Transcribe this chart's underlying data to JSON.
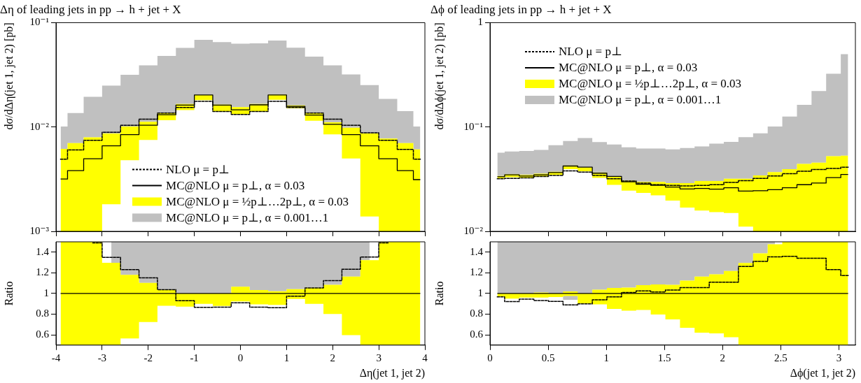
{
  "chart_data": [
    {
      "type": "step",
      "title": "Δη of leading jets in pp → h + jet + X",
      "ylabel": "dσ/dΔη(jet 1, jet 2) [pb]",
      "log": true,
      "legend": "bottom",
      "tick_labels": "y",
      "x": [
        -3.9,
        -3.6,
        -3.2,
        -2.8,
        -2.4,
        -2,
        -1.6,
        -1.2,
        -0.8,
        -0.4,
        0,
        0.4,
        0.8,
        1.2,
        1.6,
        2,
        2.4,
        2.8,
        3.2,
        3.6,
        3.9
      ],
      "xlim": [
        -4,
        4
      ],
      "xticks": [
        -4,
        -3,
        -2,
        -1,
        0,
        1,
        2,
        3,
        4
      ],
      "ylim": [
        0.001,
        0.1
      ],
      "yticks": [
        {
          "value": 0.001,
          "label": "10⁻³"
        },
        {
          "value": 0.01,
          "label": "10⁻²"
        },
        {
          "value": 0.1,
          "label": "10⁻¹"
        }
      ],
      "series": [
        {
          "name": "NLO μ = p⊥",
          "type": "step",
          "line_style": "dashed",
          "color": "#000000",
          "values": [
            0.00492,
            0.00603,
            0.00746,
            0.0089,
            0.0104,
            0.0119,
            0.0136,
            0.0154,
            0.0176,
            0.0141,
            0.0132,
            0.0141,
            0.0176,
            0.0154,
            0.0136,
            0.0119,
            0.0104,
            0.00881,
            0.00746,
            0.00609,
            0.00492
          ]
        },
        {
          "name": "MC@NLO μ = p⊥, α = 0.03",
          "type": "step",
          "line_style": "solid",
          "color": "#000000",
          "values": [
            0.00317,
            0.00382,
            0.00497,
            0.00661,
            0.00846,
            0.0104,
            0.0131,
            0.0162,
            0.0203,
            0.0162,
            0.0146,
            0.0163,
            0.0203,
            0.0158,
            0.013,
            0.0106,
            0.00846,
            0.00661,
            0.00497,
            0.00382,
            0.00313
          ]
        },
        {
          "name": "MC@NLO μ = ½p⊥…2p⊥, α = 0.03",
          "type": "step",
          "color": "#ffff00",
          "values": [
            null,
            null,
            null,
            null,
            null,
            null,
            null,
            null,
            null,
            null,
            null,
            null,
            null,
            null,
            null,
            null,
            null,
            null,
            null,
            null,
            null
          ],
          "lower": [
            0.001,
            0.001,
            0.001,
            0.00182,
            0.0048,
            0.0075,
            0.0116,
            0.0145,
            0.0181,
            0.0141,
            0.0132,
            0.0141,
            0.0182,
            0.0151,
            0.0115,
            0.00851,
            0.005,
            0.00139,
            0.001,
            0.001,
            0.001
          ],
          "upper": [
            0.00618,
            0.00702,
            0.00796,
            0.00868,
            0.0101,
            0.0112,
            0.0137,
            0.0166,
            0.0203,
            0.0164,
            0.0155,
            0.0166,
            0.0205,
            0.0161,
            0.0137,
            0.0111,
            0.00985,
            0.00868,
            0.00776,
            0.00702,
            0.00609
          ]
        },
        {
          "name": "MC@NLO μ = p⊥, α = 0.001…1",
          "type": "step",
          "color": "#c0c0c0",
          "values": [
            null,
            null,
            null,
            null,
            null,
            null,
            null,
            null,
            null,
            null,
            null,
            null,
            null,
            null,
            null,
            null,
            null,
            null,
            null,
            null,
            null
          ],
          "lower": [
            0.00618,
            0.00702,
            0.00796,
            0.00868,
            0.0101,
            0.0112,
            0.0137,
            0.0166,
            0.0203,
            0.0164,
            0.0155,
            0.0166,
            0.0205,
            0.0161,
            0.0137,
            0.0111,
            0.00985,
            0.00868,
            0.00776,
            0.00702,
            0.00609
          ],
          "upper": [
            0.0101,
            0.0136,
            0.0195,
            0.0249,
            0.0317,
            0.039,
            0.048,
            0.0573,
            0.0684,
            0.065,
            0.0628,
            0.0634,
            0.0674,
            0.0576,
            0.0473,
            0.039,
            0.0319,
            0.0252,
            0.0186,
            0.0142,
            0.0101
          ]
        }
      ]
    },
    {
      "type": "step",
      "title": "Δϕ of leading jets in pp → h + jet + X",
      "ylabel": "dσ/dΔϕ(jet 1, jet 2) [pb]",
      "log": true,
      "legend": "top left",
      "tick_labels": "y",
      "x": [
        0.063,
        0.189,
        0.314,
        0.44,
        0.565,
        0.691,
        0.817,
        0.942,
        1.068,
        1.194,
        1.319,
        1.445,
        1.571,
        1.696,
        1.822,
        1.948,
        2.073,
        2.199,
        2.325,
        2.45,
        2.576,
        2.702,
        2.827,
        2.953,
        3.079
      ],
      "xlim": [
        0,
        3.1416
      ],
      "xticks": [
        0,
        0.5,
        1,
        1.5,
        2,
        2.5,
        3
      ],
      "ylim": [
        0.01,
        1
      ],
      "yticks": [
        {
          "value": 0.01,
          "label": "10⁻²"
        },
        {
          "value": 0.1,
          "label": "10⁻¹"
        },
        1
      ],
      "series": [
        {
          "name": "NLO μ = p⊥",
          "type": "step",
          "line_style": "dashed",
          "color": "#000000",
          "values": [
            0.0319,
            0.0322,
            0.0325,
            0.0336,
            0.0343,
            0.038,
            0.037,
            0.0343,
            0.0319,
            0.0303,
            0.029,
            0.028,
            0.0276,
            0.0272,
            0.0276,
            0.028,
            0.0294,
            0.0306,
            0.0322,
            0.0339,
            0.0357,
            0.0376,
            0.0392,
            0.04,
            0.0412
          ]
        },
        {
          "name": "MC@NLO μ = p⊥, α = 0.03",
          "type": "step",
          "line_style": "solid",
          "color": "#000000",
          "values": [
            0.0334,
            0.0348,
            0.0339,
            0.0348,
            0.0366,
            0.0423,
            0.0412,
            0.0361,
            0.0336,
            0.0298,
            0.0283,
            0.0276,
            0.0266,
            0.0255,
            0.0258,
            0.0254,
            0.0262,
            0.0243,
            0.0245,
            0.0251,
            0.0262,
            0.028,
            0.029,
            0.0327,
            0.0351
          ]
        },
        {
          "name": "MC@NLO μ = ½p⊥…2p⊥, α = 0.03",
          "type": "step",
          "color": "#ffff00",
          "values": [
            null,
            null,
            null,
            null,
            null,
            null,
            null,
            null,
            null,
            null,
            null,
            null,
            null,
            null,
            null,
            null,
            null,
            null,
            null,
            null,
            null,
            null,
            null,
            null,
            null
          ],
          "lower": [
            0.0322,
            0.033,
            0.0325,
            0.0336,
            0.0348,
            0.0395,
            0.0376,
            0.0325,
            0.0279,
            0.0246,
            0.0234,
            0.0221,
            0.0197,
            0.0169,
            0.0158,
            0.0153,
            0.015,
            0.0111,
            0.01,
            0.01,
            0.01,
            0.01,
            0.01,
            0.01,
            0.01
          ],
          "upper": [
            0.0339,
            0.0353,
            0.0348,
            0.0357,
            0.0372,
            0.0428,
            0.0412,
            0.0366,
            0.0336,
            0.0306,
            0.0298,
            0.0298,
            0.029,
            0.029,
            0.0303,
            0.0303,
            0.0319,
            0.0319,
            0.0343,
            0.037,
            0.0395,
            0.0443,
            0.0455,
            0.0525,
            0.0531
          ]
        },
        {
          "name": "MC@NLO μ = p⊥, α = 0.001…1",
          "type": "step",
          "color": "#c0c0c0",
          "values": [
            null,
            null,
            null,
            null,
            null,
            null,
            null,
            null,
            null,
            null,
            null,
            null,
            null,
            null,
            null,
            null,
            null,
            null,
            null,
            null,
            null,
            null,
            null,
            null,
            null
          ],
          "lower": [
            0.0339,
            0.0353,
            0.0348,
            0.0357,
            0.0372,
            0.0428,
            0.0412,
            0.0366,
            0.0336,
            0.0306,
            0.0298,
            0.0298,
            0.029,
            0.029,
            0.0303,
            0.0303,
            0.0319,
            0.0319,
            0.0343,
            0.037,
            0.0395,
            0.0443,
            0.0455,
            0.0525,
            0.0531
          ],
          "upper": [
            0.0568,
            0.0582,
            0.0589,
            0.0604,
            0.067,
            0.0734,
            0.0785,
            0.0716,
            0.068,
            0.0639,
            0.0622,
            0.0622,
            0.061,
            0.0629,
            0.0652,
            0.0693,
            0.0719,
            0.0798,
            0.0871,
            0.101,
            0.126,
            0.163,
            0.221,
            0.324,
            0.499
          ]
        }
      ]
    },
    {
      "type": "step",
      "xlabel": "Δη(jet 1, jet 2)",
      "ylabel": "Ratio",
      "x": [
        -3.9,
        -3.6,
        -3.2,
        -2.8,
        -2.4,
        -2,
        -1.6,
        -1.2,
        -0.8,
        -0.4,
        0,
        0.4,
        0.8,
        1.2,
        1.6,
        2,
        2.4,
        2.8,
        3.2,
        3.6,
        3.9
      ],
      "xlim": [
        -4,
        4
      ],
      "xticks": [
        -4,
        -3,
        -2,
        -1,
        0,
        1,
        2,
        3,
        4
      ],
      "ylim": [
        0.5,
        1.5
      ],
      "yticks": [
        0.6,
        0.8,
        1,
        1.2,
        1.4
      ],
      "series": [
        {
          "type": "step",
          "line_style": "dashed",
          "color": "#000000",
          "values": [
            null,
            null,
            1.49,
            1.349,
            1.231,
            1.152,
            1.037,
            0.93,
            0.866,
            0.868,
            0.91,
            0.868,
            0.862,
            0.974,
            1.053,
            1.125,
            1.235,
            1.352,
            1.49,
            null,
            null
          ]
        },
        {
          "type": "step",
          "line_style": "solid",
          "color": "#000000",
          "values": [
            1,
            1,
            1,
            1,
            1,
            1,
            1,
            1,
            1,
            1,
            1,
            1,
            1,
            1,
            1,
            1,
            1,
            1,
            1,
            1,
            1
          ]
        },
        {
          "type": "step",
          "color": "#ffff00",
          "values": [
            null,
            null,
            null,
            null,
            null,
            null,
            null,
            null,
            null,
            null,
            null,
            null,
            null,
            null,
            null,
            null,
            null,
            null,
            null,
            null,
            null
          ],
          "lower": [
            0.5,
            0.5,
            0.5,
            0.5,
            0.565,
            0.723,
            0.881,
            0.872,
            0.9,
            0.88,
            0.923,
            0.895,
            0.89,
            0.947,
            0.899,
            0.802,
            0.596,
            0.5,
            0.5,
            0.5,
            0.5
          ],
          "upper": [
            1.5,
            1.5,
            1.5,
            1.297,
            1.18,
            1.103,
            1.037,
            1,
            1,
            1,
            1.066,
            1.033,
            1.022,
            1.042,
            1.055,
            1.084,
            1.163,
            1.323,
            1.5,
            1.5,
            1.5
          ]
        },
        {
          "type": "step",
          "color": "#c0c0c0",
          "values": [
            null,
            null,
            null,
            null,
            null,
            null,
            null,
            null,
            null,
            null,
            null,
            null,
            null,
            null,
            null,
            null,
            null,
            null,
            null,
            null,
            null
          ],
          "lower": [
            null,
            null,
            null,
            1.297,
            1.18,
            1.103,
            1.037,
            1,
            1,
            1,
            1.066,
            1.033,
            1.022,
            1.042,
            1.055,
            1.084,
            1.163,
            1.323,
            null,
            null,
            null
          ],
          "upper": [
            null,
            null,
            null,
            1.5,
            1.5,
            1.5,
            1.5,
            1.5,
            1.5,
            1.5,
            1.5,
            1.5,
            1.5,
            1.5,
            1.5,
            1.5,
            1.5,
            1.5,
            null,
            null,
            null
          ]
        }
      ]
    },
    {
      "type": "step",
      "xlabel": "Δϕ(jet 1, jet 2)",
      "ylabel": "Ratio",
      "x": [
        0.063,
        0.189,
        0.314,
        0.44,
        0.565,
        0.691,
        0.817,
        0.942,
        1.068,
        1.194,
        1.319,
        1.445,
        1.571,
        1.696,
        1.822,
        1.948,
        2.073,
        2.199,
        2.325,
        2.45,
        2.576,
        2.702,
        2.827,
        2.953,
        3.079
      ],
      "xlim": [
        0,
        3.1416
      ],
      "xticks": [
        0,
        0.5,
        1,
        1.5,
        2,
        2.5,
        3
      ],
      "ylim": [
        0.5,
        1.5
      ],
      "yticks": [
        0.6,
        0.8,
        1,
        1.2,
        1.4
      ],
      "series": [
        {
          "type": "step",
          "line_style": "dashed",
          "color": "#000000",
          "values": [
            0.967,
            0.921,
            0.945,
            0.932,
            0.923,
            0.89,
            0.9,
            0.938,
            0.967,
            1.009,
            1.024,
            1.015,
            1.033,
            1.057,
            1.057,
            1.11,
            1.11,
            1.262,
            1.31,
            1.354,
            1.36,
            1.341,
            1.341,
            1.231,
            1.174
          ]
        },
        {
          "type": "step",
          "line_style": "solid",
          "color": "#000000",
          "values": [
            1,
            1,
            1,
            1,
            1,
            1,
            1,
            1,
            1,
            1,
            1,
            1,
            1,
            1,
            1,
            1,
            1,
            1,
            1,
            1,
            1,
            1,
            1,
            1,
            1
          ]
        },
        {
          "type": "step",
          "color": "#ffff00",
          "values": [
            null,
            null,
            null,
            null,
            null,
            null,
            null,
            null,
            null,
            null,
            null,
            null,
            null,
            null,
            null,
            null,
            null,
            null,
            null,
            null,
            null,
            null,
            null,
            null,
            null
          ],
          "lower": [
            0.97,
            0.95,
            0.96,
            0.96,
            0.965,
            0.976,
            0.905,
            0.895,
            0.85,
            0.833,
            0.84,
            0.796,
            0.749,
            0.668,
            0.62,
            0.613,
            0.576,
            0.5,
            0.5,
            0.5,
            0.5,
            0.5,
            0.5,
            0.5,
            0.5
          ],
          "upper": [
            1,
            1,
            1,
            1.01,
            1,
            1.02,
            1,
            1.037,
            1.053,
            1.057,
            1.081,
            1.088,
            1.084,
            1.125,
            1.163,
            1.185,
            1.218,
            1.295,
            1.389,
            1.477,
            1.5,
            1.5,
            1.5,
            1.5,
            1.5
          ]
        },
        {
          "type": "step",
          "color": "#c0c0c0",
          "values": [
            null,
            null,
            null,
            null,
            null,
            null,
            null,
            null,
            null,
            null,
            null,
            null,
            null,
            null,
            null,
            null,
            null,
            null,
            null,
            null,
            null,
            null,
            null,
            null,
            null
          ],
          "lower": [
            1,
            1,
            1,
            1.01,
            1,
            0.938,
            1,
            1.037,
            1.053,
            1.057,
            1.081,
            1.088,
            1.084,
            1.125,
            1.163,
            1.185,
            1.218,
            1.295,
            1.389,
            1.477,
            null,
            null,
            null,
            null,
            null
          ],
          "upper": [
            1.5,
            1.5,
            1.5,
            1.5,
            1.5,
            1.5,
            1.5,
            1.5,
            1.5,
            1.5,
            1.5,
            1.5,
            1.5,
            1.5,
            1.5,
            1.5,
            1.5,
            1.5,
            1.5,
            1.5,
            null,
            null,
            null,
            null,
            null
          ]
        }
      ]
    }
  ]
}
